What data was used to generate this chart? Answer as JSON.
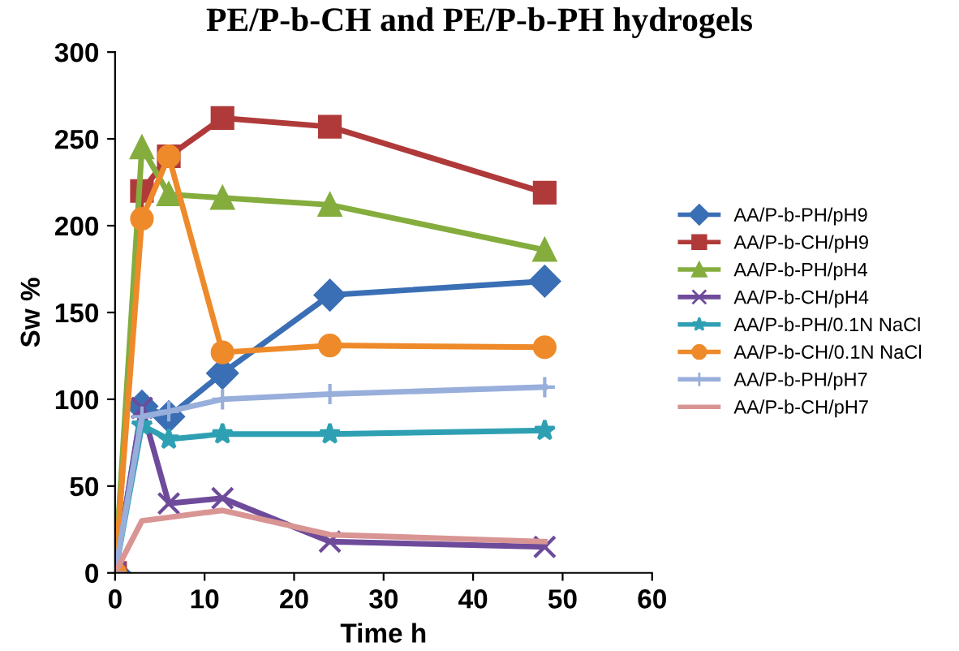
{
  "chart_data": {
    "type": "line",
    "title": "PE/P-b-CH and PE/P-b-PH hydrogels",
    "xlabel": "Time h",
    "ylabel": "Sw %",
    "x": [
      0,
      3,
      6,
      12,
      24,
      48
    ],
    "series": [
      {
        "name": "AA/P-b-PH/pH9",
        "color": "#3a6fb5",
        "marker": "diamond",
        "values": [
          0,
          96,
          90,
          115,
          160,
          168
        ]
      },
      {
        "name": "AA/P-b-CH/pH9",
        "color": "#b03a3a",
        "marker": "square",
        "values": [
          0,
          220,
          240,
          262,
          257,
          219
        ]
      },
      {
        "name": "AA/P-b-PH/pH4",
        "color": "#84ad3e",
        "marker": "triangle",
        "values": [
          0,
          245,
          218,
          216,
          212,
          186
        ]
      },
      {
        "name": "AA/P-b-CH/pH4",
        "color": "#6e4b9a",
        "marker": "cross",
        "values": [
          0,
          95,
          40,
          43,
          18,
          15
        ]
      },
      {
        "name": "AA/P-b-PH/0.1N NaCl",
        "color": "#2fa0b3",
        "marker": "star",
        "values": [
          0,
          85,
          77,
          80,
          80,
          82
        ]
      },
      {
        "name": "AA/P-b-CH/0.1N NaCl",
        "color": "#ee8a2a",
        "marker": "circle",
        "values": [
          0,
          204,
          240,
          127,
          131,
          130
        ]
      },
      {
        "name": "AA/P-b-PH/pH7",
        "color": "#98aedb",
        "marker": "plus",
        "values": [
          0,
          90,
          93,
          100,
          103,
          107
        ]
      },
      {
        "name": "AA/P-b-CH/pH7",
        "color": "#d99594",
        "marker": "none",
        "values": [
          0,
          30,
          32,
          36,
          22,
          18
        ]
      }
    ],
    "xlim": [
      0,
      60
    ],
    "xticks": [
      0,
      10,
      20,
      30,
      40,
      50,
      60
    ],
    "ylim": [
      0,
      300
    ],
    "yticks": [
      0,
      50,
      100,
      150,
      200,
      250,
      300
    ],
    "legend": "right",
    "grid": false,
    "line_style": "solid"
  }
}
